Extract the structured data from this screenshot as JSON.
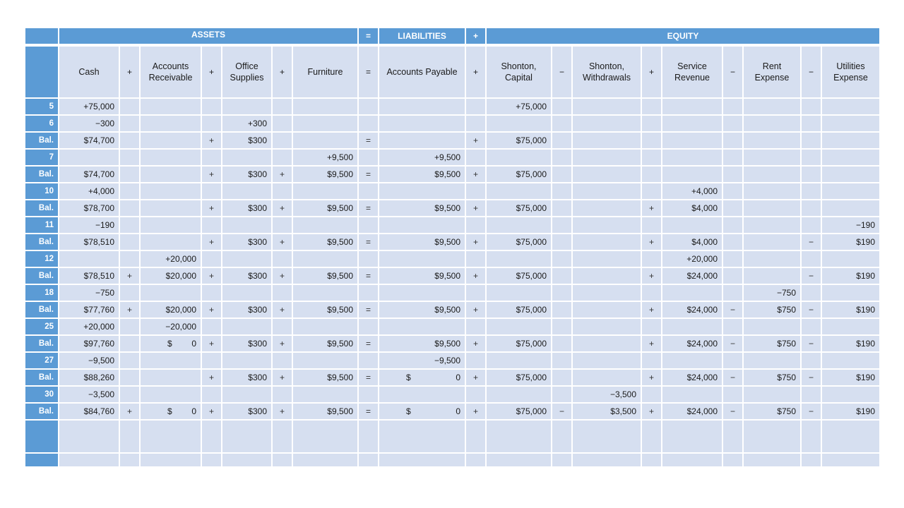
{
  "bands": {
    "assets": "ASSETS",
    "eq1": "=",
    "liabilities": "LIABILITIES",
    "plus1": "+",
    "equity": "EQUITY"
  },
  "columns": [
    {
      "key": "cash",
      "label": "Cash",
      "kind": "amount"
    },
    {
      "key": "op1",
      "label": "+",
      "kind": "op"
    },
    {
      "key": "ar",
      "label": "Accounts Receivable",
      "lines": [
        "Accounts",
        "Receivable"
      ],
      "kind": "amount"
    },
    {
      "key": "op2",
      "label": "+",
      "kind": "op"
    },
    {
      "key": "supplies",
      "label": "Office Supplies",
      "lines": [
        "Office",
        "Supplies"
      ],
      "kind": "amount"
    },
    {
      "key": "op3",
      "label": "+",
      "kind": "op"
    },
    {
      "key": "furniture",
      "label": "Furniture",
      "kind": "amount"
    },
    {
      "key": "op4",
      "label": "=",
      "kind": "op"
    },
    {
      "key": "ap",
      "label": "Accounts Payable",
      "kind": "amount"
    },
    {
      "key": "op5",
      "label": "+",
      "kind": "op"
    },
    {
      "key": "capital",
      "label": "Shonton, Capital",
      "lines": [
        "Shonton,",
        "Capital"
      ],
      "kind": "amount"
    },
    {
      "key": "op6",
      "label": "−",
      "kind": "op"
    },
    {
      "key": "withdrawals",
      "label": "Shonton, Withdrawals",
      "lines": [
        "Shonton,",
        "Withdrawals"
      ],
      "kind": "amount"
    },
    {
      "key": "op7",
      "label": "+",
      "kind": "op"
    },
    {
      "key": "revenue",
      "label": "Service Revenue",
      "lines": [
        "Service",
        "Revenue"
      ],
      "kind": "amount"
    },
    {
      "key": "op8",
      "label": "−",
      "kind": "op"
    },
    {
      "key": "rent",
      "label": "Rent Expense",
      "lines": [
        "Rent",
        "Expense"
      ],
      "kind": "amount"
    },
    {
      "key": "op9",
      "label": "−",
      "kind": "op"
    },
    {
      "key": "utilities",
      "label": "Utilities Expense",
      "lines": [
        "Utilities",
        "Expense"
      ],
      "kind": "amount"
    }
  ],
  "rows": [
    {
      "label": "5",
      "cells": [
        "+75,000",
        "",
        "",
        "",
        "",
        "",
        "",
        "",
        "",
        "",
        "+75,000",
        "",
        "",
        "",
        "",
        "",
        "",
        "",
        ""
      ]
    },
    {
      "label": "6",
      "cells": [
        "−300",
        "",
        "",
        "",
        "+300",
        "",
        "",
        "",
        "",
        "",
        "",
        "",
        "",
        "",
        "",
        "",
        "",
        "",
        ""
      ]
    },
    {
      "label": "Bal.",
      "cells": [
        "$74,700",
        "",
        "",
        "+",
        "$300",
        "",
        "",
        "=",
        "",
        "+",
        "$75,000",
        "",
        "",
        "",
        "",
        "",
        "",
        "",
        ""
      ]
    },
    {
      "label": "7",
      "cells": [
        "",
        "",
        "",
        "",
        "",
        "",
        "+9,500",
        "",
        "+9,500",
        "",
        "",
        "",
        "",
        "",
        "",
        "",
        "",
        "",
        ""
      ]
    },
    {
      "label": "Bal.",
      "cells": [
        "$74,700",
        "",
        "",
        "+",
        "$300",
        "+",
        "$9,500",
        "=",
        "$9,500",
        "+",
        "$75,000",
        "",
        "",
        "",
        "",
        "",
        "",
        "",
        ""
      ]
    },
    {
      "label": "10",
      "cells": [
        "+4,000",
        "",
        "",
        "",
        "",
        "",
        "",
        "",
        "",
        "",
        "",
        "",
        "",
        "",
        "+4,000",
        "",
        "",
        "",
        ""
      ]
    },
    {
      "label": "Bal.",
      "cells": [
        "$78,700",
        "",
        "",
        "+",
        "$300",
        "+",
        "$9,500",
        "=",
        "$9,500",
        "+",
        "$75,000",
        "",
        "",
        "+",
        "$4,000",
        "",
        "",
        "",
        ""
      ]
    },
    {
      "label": "11",
      "cells": [
        "−190",
        "",
        "",
        "",
        "",
        "",
        "",
        "",
        "",
        "",
        "",
        "",
        "",
        "",
        "",
        "",
        "",
        "",
        "−190"
      ]
    },
    {
      "label": "Bal.",
      "cells": [
        "$78,510",
        "",
        "",
        "+",
        "$300",
        "+",
        "$9,500",
        "=",
        "$9,500",
        "+",
        "$75,000",
        "",
        "",
        "+",
        "$4,000",
        "",
        "",
        "−",
        "$190"
      ]
    },
    {
      "label": "12",
      "cells": [
        "",
        "",
        "+20,000",
        "",
        "",
        "",
        "",
        "",
        "",
        "",
        "",
        "",
        "",
        "",
        "+20,000",
        "",
        "",
        "",
        ""
      ]
    },
    {
      "label": "Bal.",
      "cells": [
        "$78,510",
        "+",
        "$20,000",
        "+",
        "$300",
        "+",
        "$9,500",
        "=",
        "$9,500",
        "+",
        "$75,000",
        "",
        "",
        "+",
        "$24,000",
        "",
        "",
        "−",
        "$190"
      ]
    },
    {
      "label": "18",
      "cells": [
        "−750",
        "",
        "",
        "",
        "",
        "",
        "",
        "",
        "",
        "",
        "",
        "",
        "",
        "",
        "",
        "",
        "−750",
        "",
        ""
      ]
    },
    {
      "label": "Bal.",
      "cells": [
        "$77,760",
        "+",
        "$20,000",
        "+",
        "$300",
        "+",
        "$9,500",
        "=",
        "$9,500",
        "+",
        "$75,000",
        "",
        "",
        "+",
        "$24,000",
        "−",
        "$750",
        "−",
        "$190"
      ]
    },
    {
      "label": "25",
      "cells": [
        "+20,000",
        "",
        "−20,000",
        "",
        "",
        "",
        "",
        "",
        "",
        "",
        "",
        "",
        "",
        "",
        "",
        "",
        "",
        "",
        ""
      ]
    },
    {
      "label": "Bal.",
      "cells": [
        "$97,760",
        "",
        "$ 0",
        "+",
        "$300",
        "+",
        "$9,500",
        "=",
        "$9,500",
        "+",
        "$75,000",
        "",
        "",
        "+",
        "$24,000",
        "−",
        "$750",
        "−",
        "$190"
      ]
    },
    {
      "label": "27",
      "cells": [
        "−9,500",
        "",
        "",
        "",
        "",
        "",
        "",
        "",
        "−9,500",
        "",
        "",
        "",
        "",
        "",
        "",
        "",
        "",
        "",
        ""
      ]
    },
    {
      "label": "Bal.",
      "cells": [
        "$88,260",
        "",
        "",
        "+",
        "$300",
        "+",
        "$9,500",
        "=",
        "$ 0",
        "+",
        "$75,000",
        "",
        "",
        "+",
        "$24,000",
        "−",
        "$750",
        "−",
        "$190"
      ]
    },
    {
      "label": "30",
      "cells": [
        "−3,500",
        "",
        "",
        "",
        "",
        "",
        "",
        "",
        "",
        "",
        "",
        "",
        "−3,500",
        "",
        "",
        "",
        "",
        "",
        ""
      ]
    },
    {
      "label": "Bal.",
      "cells": [
        "$84,760",
        "+",
        "$ 0",
        "+",
        "$300",
        "+",
        "$9,500",
        "=",
        "$ 0",
        "+",
        "$75,000",
        "−",
        "$3,500",
        "+",
        "$24,000",
        "−",
        "$750",
        "−",
        "$190"
      ]
    },
    {
      "label": "",
      "cells": [
        "",
        "",
        "",
        "",
        "",
        "",
        "",
        "",
        "",
        "",
        "",
        "",
        "",
        "",
        "",
        "",
        "",
        "",
        ""
      ]
    },
    {
      "label": "",
      "cells": [
        "",
        "",
        "",
        "",
        "",
        "",
        "",
        "",
        "",
        "",
        "",
        "",
        "",
        "",
        "",
        "",
        "",
        "",
        ""
      ]
    }
  ]
}
